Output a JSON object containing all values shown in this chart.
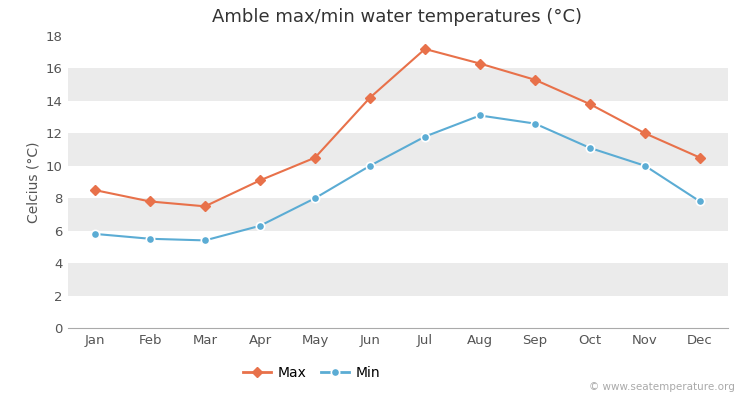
{
  "title": "Amble max/min water temperatures (°C)",
  "ylabel": "Celcius (°C)",
  "months": [
    "Jan",
    "Feb",
    "Mar",
    "Apr",
    "May",
    "Jun",
    "Jul",
    "Aug",
    "Sep",
    "Oct",
    "Nov",
    "Dec"
  ],
  "max_values": [
    8.5,
    7.8,
    7.5,
    9.1,
    10.5,
    14.2,
    17.2,
    16.3,
    15.3,
    13.8,
    12.0,
    10.5
  ],
  "min_values": [
    5.8,
    5.5,
    5.4,
    6.3,
    8.0,
    10.0,
    11.8,
    13.1,
    12.6,
    11.1,
    10.0,
    7.8
  ],
  "max_color": "#E8714A",
  "min_color": "#5BACD4",
  "fig_bg_color": "#FFFFFF",
  "plot_bg_color": "#FFFFFF",
  "stripe_color": "#EBEBEB",
  "ylim": [
    0,
    18
  ],
  "yticks": [
    0,
    2,
    4,
    6,
    8,
    10,
    12,
    14,
    16,
    18
  ],
  "watermark": "© www.seatemperature.org",
  "title_fontsize": 13,
  "label_fontsize": 10,
  "tick_fontsize": 9.5,
  "watermark_fontsize": 7.5
}
